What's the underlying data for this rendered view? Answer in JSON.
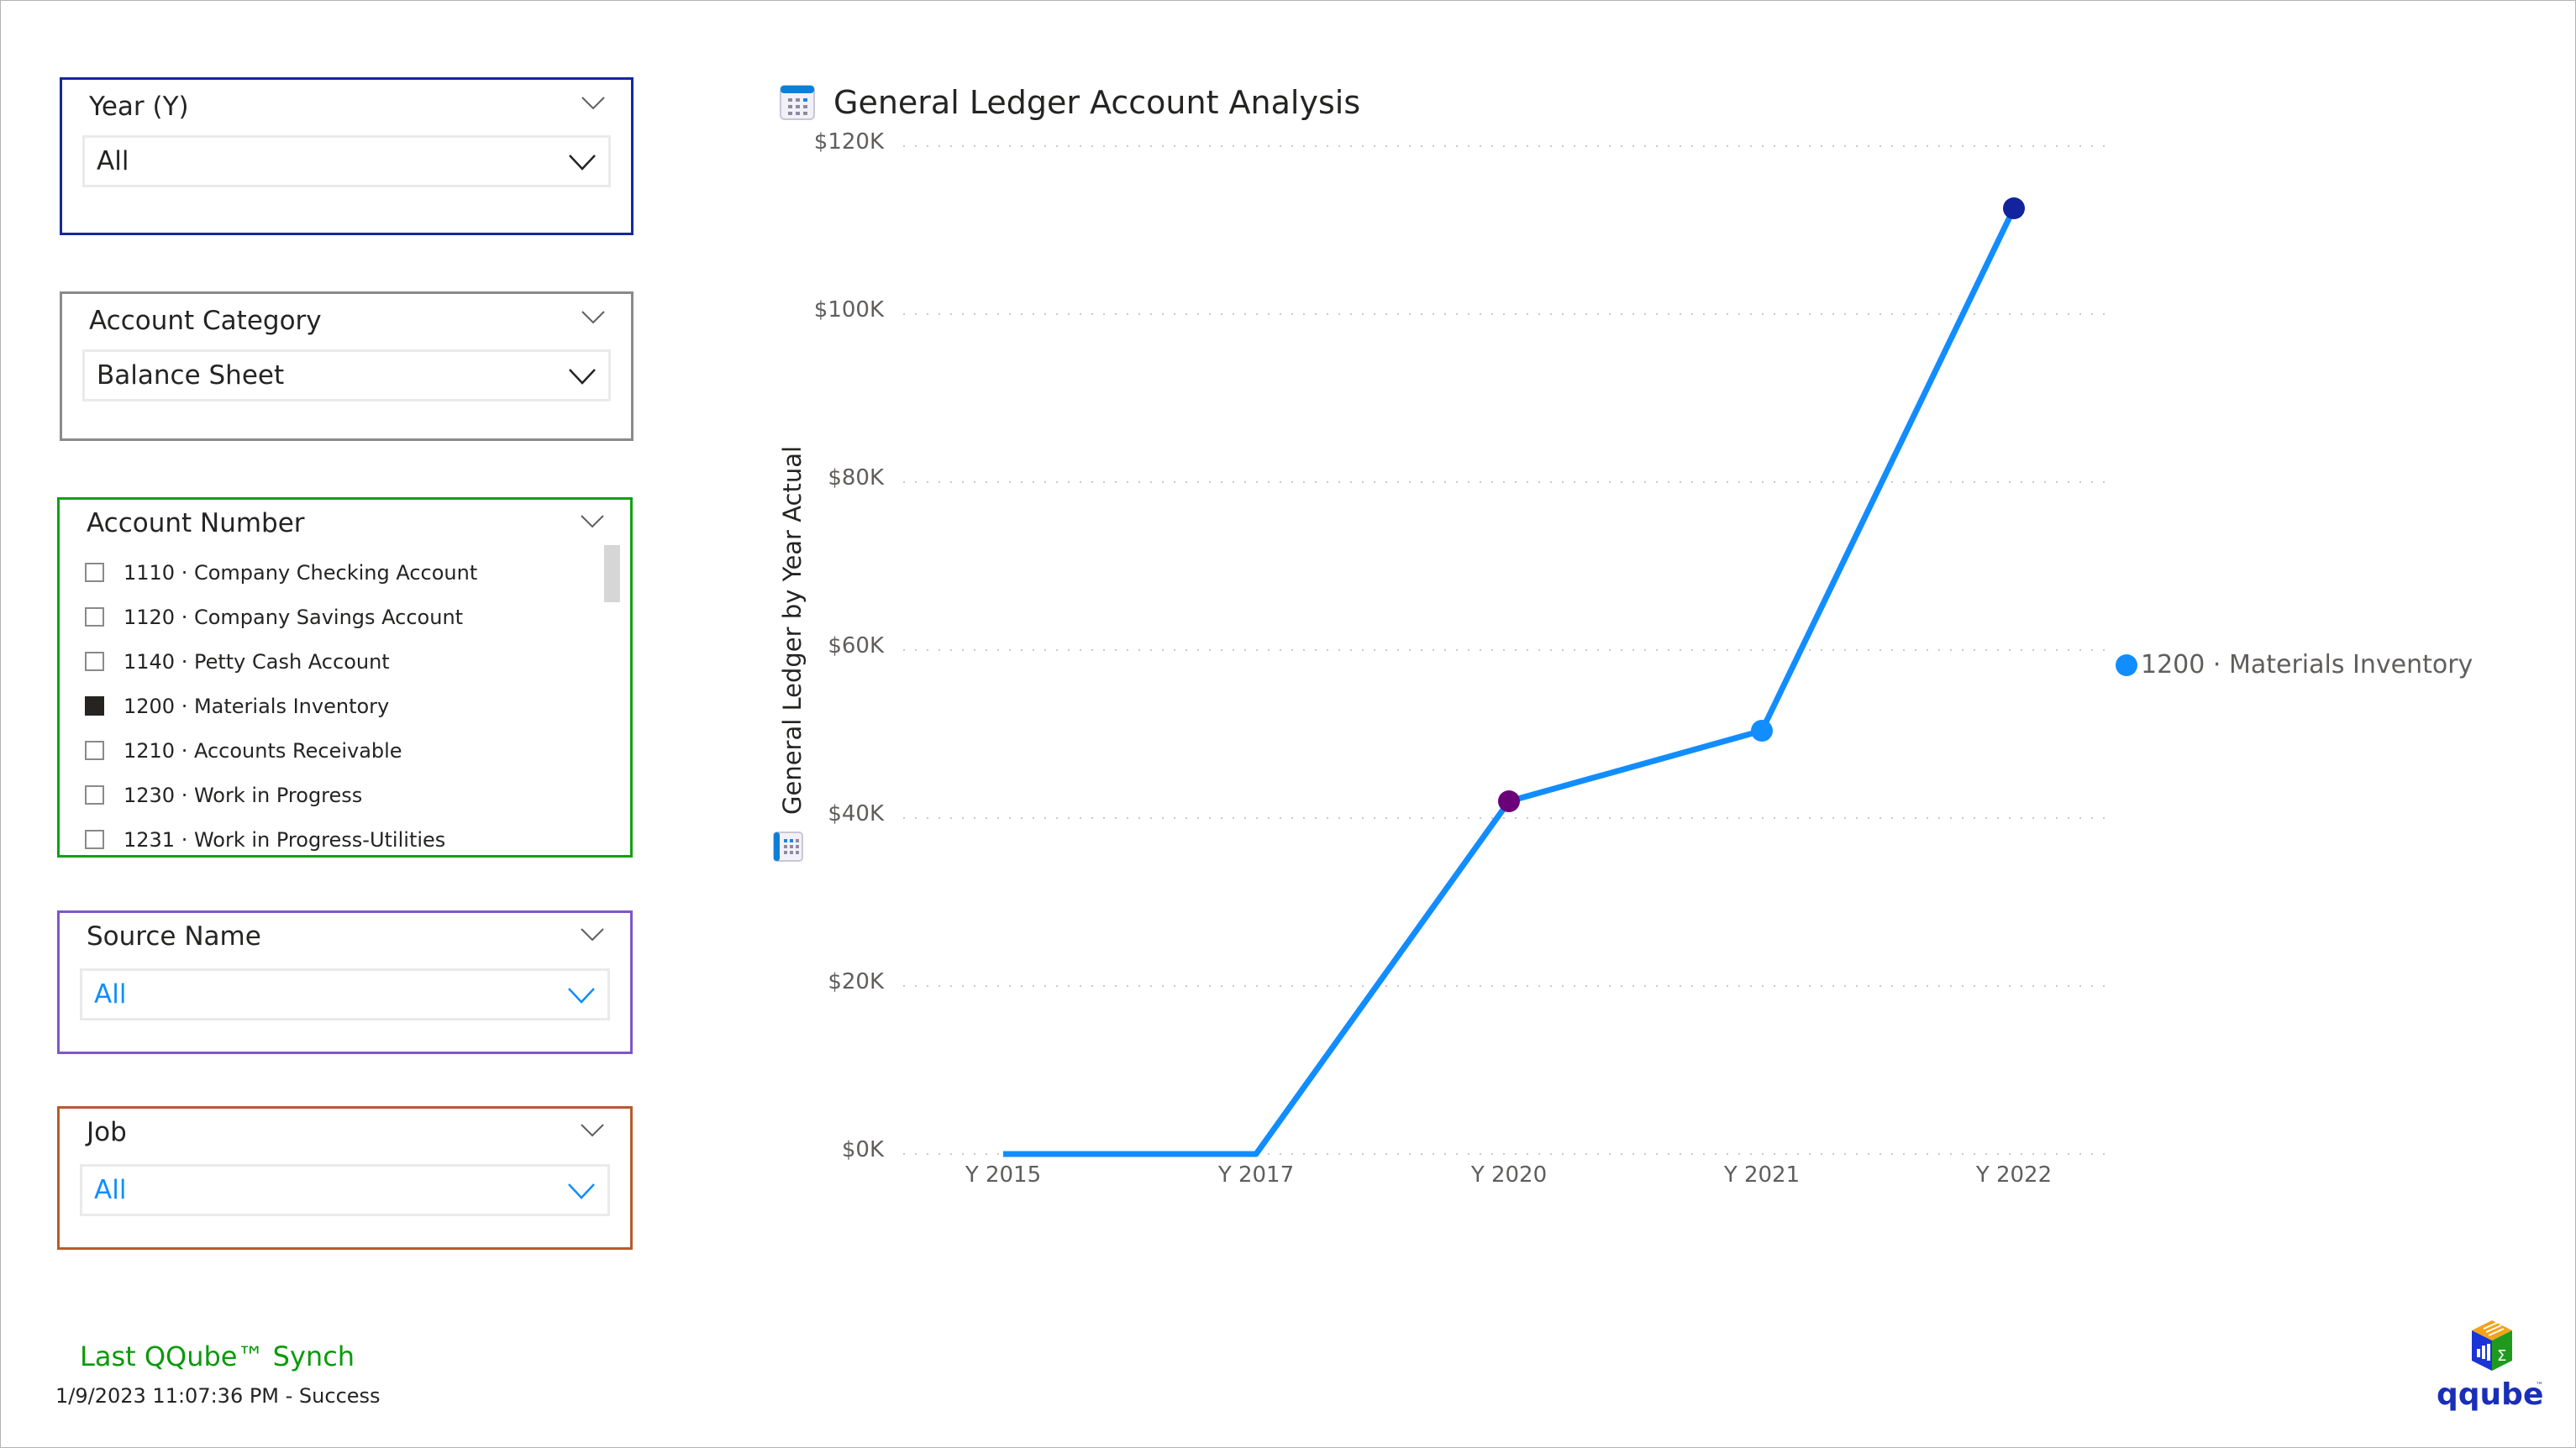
{
  "slicers": {
    "year": {
      "title": "Year (Y)",
      "value": "All",
      "border_color": "#1427a0"
    },
    "account_category": {
      "title": "Account Category",
      "value": "Balance Sheet",
      "border_color": "#8a8a8a"
    },
    "account_number": {
      "title": "Account Number",
      "border_color": "#11a011",
      "items": [
        {
          "label": "1110 · Company Checking Account",
          "checked": false
        },
        {
          "label": "1120 · Company Savings Account",
          "checked": false
        },
        {
          "label": "1140 · Petty Cash Account",
          "checked": false
        },
        {
          "label": "1200 · Materials Inventory",
          "checked": true
        },
        {
          "label": "1210 · Accounts Receivable",
          "checked": false
        },
        {
          "label": "1230 · Work in Progress",
          "checked": false
        },
        {
          "label": "1231 · Work in Progress-Utilities",
          "checked": false
        }
      ]
    },
    "source_name": {
      "title": "Source Name",
      "value": "All",
      "border_color": "#7e57c8"
    },
    "job": {
      "title": "Job",
      "value": "All",
      "border_color": "#b85a2e"
    }
  },
  "synch": {
    "title": "Last QQube™ Synch",
    "status": "1/9/2023 11:07:36 PM - Success"
  },
  "logo": {
    "text": "qqube",
    "tm": "™"
  },
  "chart": {
    "icon": "calendar-table-icon"
  },
  "chart_data": {
    "type": "line",
    "title": "General Ledger Account Analysis",
    "xlabel": "",
    "ylabel": "General Ledger by Year Actual",
    "categories": [
      "Y 2015",
      "Y 2017",
      "Y 2020",
      "Y 2021",
      "Y 2022"
    ],
    "series": [
      {
        "name": "1200 · Materials Inventory",
        "color": "#118dff",
        "values": [
          0,
          0,
          42000,
          50400,
          112600
        ],
        "marker_colors": [
          null,
          null,
          "#6b007b",
          "#118dff",
          "#12239e"
        ]
      }
    ],
    "yticks": [
      "$0K",
      "$20K",
      "$40K",
      "$60K",
      "$80K",
      "$100K",
      "$120K"
    ],
    "ytick_values": [
      0,
      20000,
      40000,
      60000,
      80000,
      100000,
      120000
    ],
    "ylim": [
      0,
      120000
    ],
    "grid": true,
    "grid_style": "dotted",
    "legend_position": "right"
  }
}
